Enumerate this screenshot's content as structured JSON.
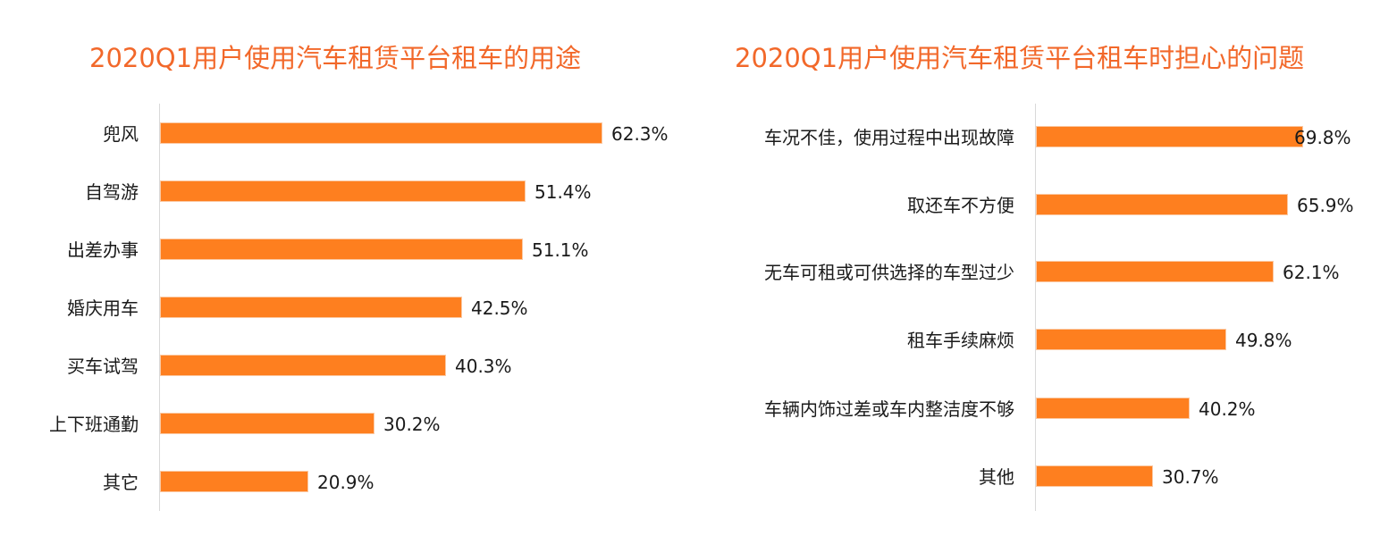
{
  "chart_data": [
    {
      "type": "bar",
      "orientation": "horizontal",
      "title": "2020Q1用户使用汽车租赁平台租车的用途",
      "categories": [
        "兜风",
        "自驾游",
        "出差办事",
        "婚庆用车",
        "买车试驾",
        "上下班通勤",
        "其它"
      ],
      "values": [
        62.3,
        51.4,
        51.1,
        42.5,
        40.3,
        30.2,
        20.9
      ],
      "value_labels": [
        "62.3%",
        "51.4%",
        "51.1%",
        "42.5%",
        "40.3%",
        "30.2%",
        "20.9%"
      ],
      "unit": "%",
      "xlabel": "",
      "ylabel": "",
      "grid": false,
      "color": "#fe7f1f"
    },
    {
      "type": "bar",
      "orientation": "horizontal",
      "title": "2020Q1用户使用汽车租赁平台租车时担心的问题",
      "categories": [
        "车况不佳，使用过程中出现故障",
        "取还车不方便",
        "无车可租或可供选择的车型过少",
        "租车手续麻烦",
        "车辆内饰过差或车内整洁度不够",
        "其他"
      ],
      "values": [
        69.8,
        65.9,
        62.1,
        49.8,
        40.2,
        30.7
      ],
      "value_labels": [
        "69.8%",
        "65.9%",
        "62.1%",
        "49.8%",
        "40.2%",
        "30.7%"
      ],
      "unit": "%",
      "xlabel": "",
      "ylabel": "",
      "grid": false,
      "color": "#fe7f1f"
    }
  ],
  "colors": {
    "title": "#f2682a",
    "bar": "#fe7f1f",
    "axis": "#d9d9d9",
    "text": "#1a1a1a"
  }
}
